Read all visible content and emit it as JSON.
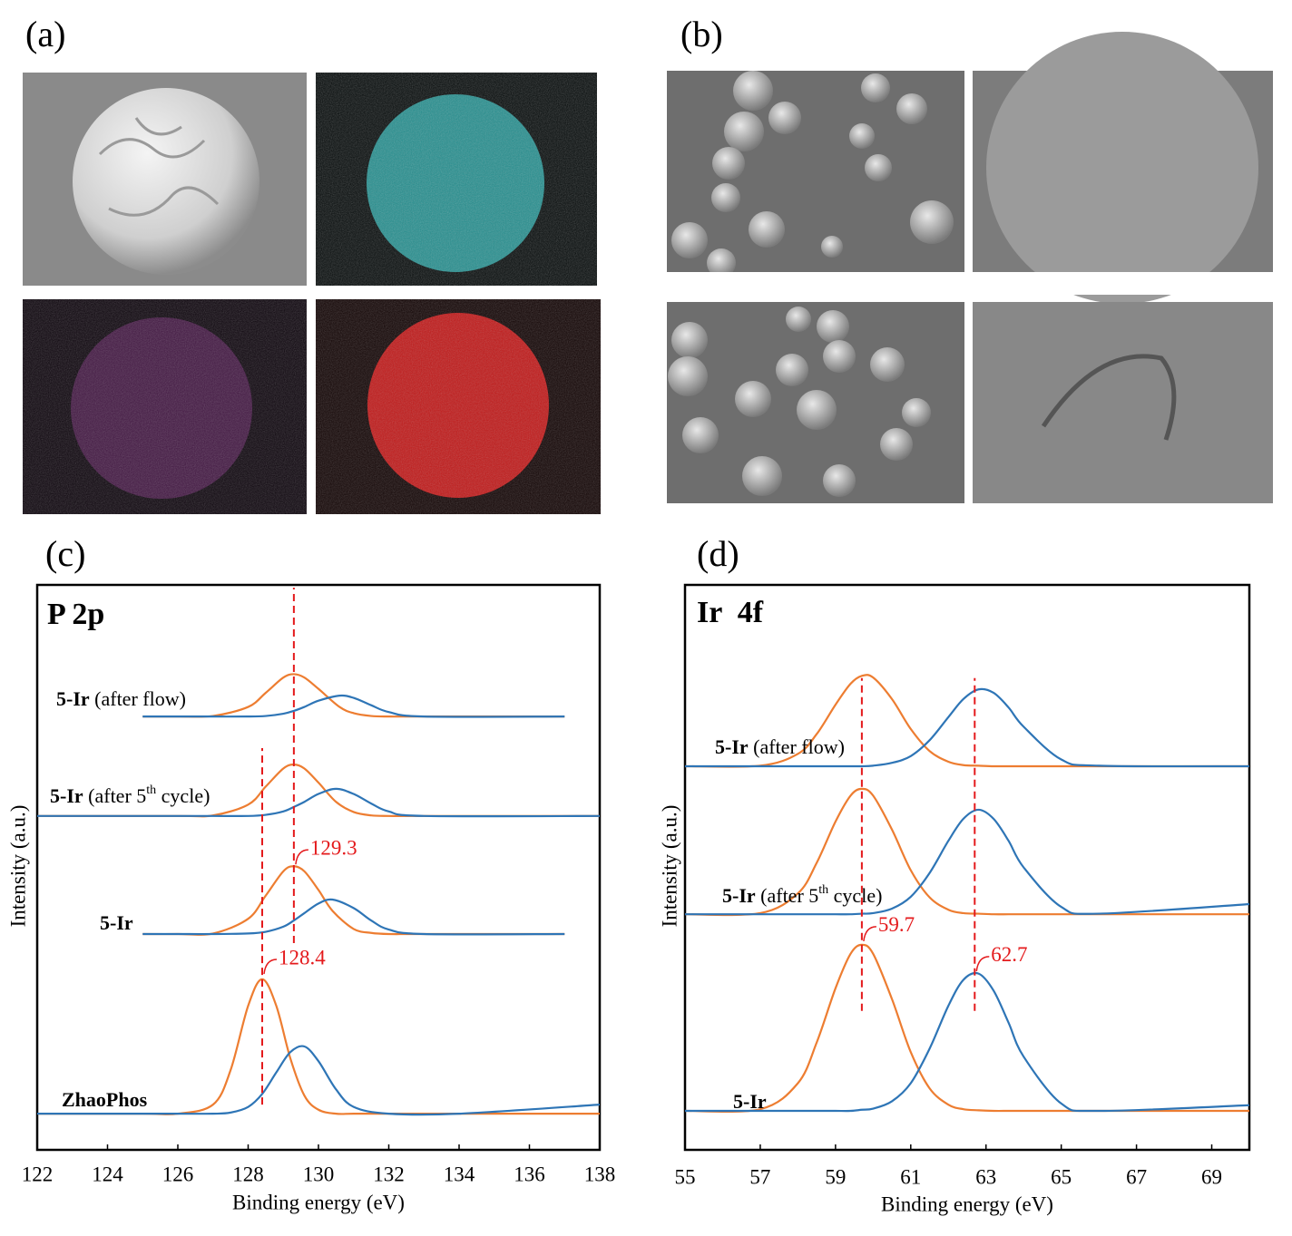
{
  "panels": [
    "(a)",
    "(b)"
  ],
  "chart_data": [
    {
      "type": "line",
      "panel": "(c)",
      "title": "P 2p",
      "x_label": "Binding energy (eV)",
      "y_label": "Intensity (a.u.)",
      "xlim": [
        122,
        138
      ],
      "xticks": [
        122,
        124,
        126,
        128,
        130,
        132,
        134,
        136,
        138
      ],
      "ylim": [
        0,
        10
      ],
      "spectra": [
        {
          "name": "5-Ir",
          "note": "(after flow)",
          "x": [
            125,
            126,
            127,
            128,
            128.5,
            129,
            129.3,
            129.6,
            130,
            130.6,
            131,
            131.5,
            132,
            133,
            137
          ],
          "components": [
            {
              "color": "#ed7d31",
              "values": [
                7.67,
                7.67,
                7.68,
                7.84,
                8.09,
                8.36,
                8.42,
                8.36,
                8.16,
                7.84,
                7.73,
                7.68,
                7.67,
                7.67,
                7.67
              ]
            },
            {
              "color": "#2e75b6",
              "values": [
                7.67,
                7.67,
                7.67,
                7.67,
                7.68,
                7.72,
                7.77,
                7.84,
                7.95,
                8.04,
                8.0,
                7.87,
                7.75,
                7.67,
                7.67
              ]
            }
          ]
        },
        {
          "name": "5-Ir",
          "note": "(after 5",
          "sup": "th",
          "note_end": " cycle)",
          "x": [
            122,
            126,
            127,
            128,
            128.5,
            129,
            129.3,
            129.6,
            130,
            130.5,
            131,
            131.5,
            132,
            133,
            138
          ],
          "components": [
            {
              "color": "#ed7d31",
              "values": [
                5.91,
                5.91,
                5.92,
                6.11,
                6.43,
                6.75,
                6.82,
                6.75,
                6.5,
                6.16,
                5.98,
                5.92,
                5.91,
                5.91,
                5.91
              ]
            },
            {
              "color": "#2e75b6",
              "values": [
                5.91,
                5.91,
                5.91,
                5.91,
                5.93,
                5.99,
                6.07,
                6.16,
                6.3,
                6.39,
                6.3,
                6.13,
                5.99,
                5.91,
                5.91
              ]
            }
          ]
        },
        {
          "name": "5-Ir",
          "x": [
            125,
            126,
            127,
            128,
            128.5,
            129,
            129.3,
            129.6,
            130,
            130.4,
            131,
            131.5,
            132,
            133,
            137
          ],
          "components": [
            {
              "color": "#ed7d31",
              "values": [
                3.82,
                3.82,
                3.83,
                4.09,
                4.5,
                4.93,
                5.02,
                4.93,
                4.6,
                4.23,
                3.91,
                3.84,
                3.82,
                3.82,
                3.82
              ]
            },
            {
              "color": "#2e75b6",
              "values": [
                3.82,
                3.82,
                3.82,
                3.83,
                3.86,
                3.95,
                4.06,
                4.19,
                4.36,
                4.43,
                4.28,
                4.06,
                3.9,
                3.82,
                3.82
              ]
            }
          ]
        },
        {
          "name": "ZhaoPhos",
          "x": [
            122,
            125,
            126,
            127,
            127.5,
            128,
            128.4,
            128.8,
            129.2,
            129.6,
            130,
            130.5,
            131,
            132,
            134,
            138
          ],
          "components": [
            {
              "color": "#ed7d31",
              "values": [
                0.64,
                0.64,
                0.64,
                0.8,
                1.41,
                2.55,
                3.02,
                2.55,
                1.62,
                0.96,
                0.71,
                0.64,
                0.64,
                0.64,
                0.64,
                0.64
              ]
            },
            {
              "color": "#2e75b6",
              "values": [
                0.64,
                0.64,
                0.64,
                0.64,
                0.66,
                0.76,
                0.99,
                1.37,
                1.73,
                1.83,
                1.57,
                1.07,
                0.76,
                0.64,
                0.64,
                0.8
              ]
            }
          ]
        }
      ],
      "annotations": [
        {
          "value": 129.3,
          "label_y": 5.31,
          "line_ylim": [
            3.66,
            9.95
          ]
        },
        {
          "value": 128.4,
          "label_y": 3.37,
          "line_ylim": [
            0.8,
            7.11
          ]
        }
      ]
    },
    {
      "type": "line",
      "panel": "(d)",
      "title": "Ir  4f",
      "x_label": "Binding energy (eV)",
      "y_label": "Intensity (a.u.)",
      "xlim": [
        55,
        70
      ],
      "xticks": [
        55,
        57,
        59,
        61,
        63,
        65,
        67,
        69
      ],
      "ylim": [
        0,
        10
      ],
      "spectra": [
        {
          "name": "5-Ir",
          "note": "(after flow)",
          "x": [
            55,
            57,
            58,
            58.5,
            59,
            59.4,
            59.7,
            60,
            60.5,
            61,
            61.5,
            62,
            62.4,
            62.8,
            63.2,
            63.6,
            64,
            65,
            66,
            70
          ],
          "components": [
            {
              "color": "#ed7d31",
              "values": [
                6.79,
                6.8,
                7.01,
                7.36,
                7.88,
                8.25,
                8.39,
                8.36,
                7.98,
                7.45,
                7.06,
                6.87,
                6.81,
                6.8,
                6.79,
                6.79,
                6.79,
                6.79,
                6.79,
                6.79
              ]
            },
            {
              "color": "#2e75b6",
              "values": [
                6.79,
                6.79,
                6.79,
                6.79,
                6.79,
                6.79,
                6.79,
                6.8,
                6.85,
                6.97,
                7.25,
                7.66,
                7.98,
                8.15,
                8.09,
                7.83,
                7.49,
                6.91,
                6.8,
                6.79
              ]
            }
          ]
        },
        {
          "name": "5-Ir",
          "note": "(after 5",
          "sup": "th",
          "note_end": " cycle)",
          "x": [
            55,
            57,
            58,
            58.5,
            59,
            59.4,
            59.7,
            60,
            60.5,
            61,
            61.5,
            62,
            62.4,
            62.8,
            63.2,
            63.6,
            64,
            65,
            66,
            70
          ],
          "components": [
            {
              "color": "#ed7d31",
              "values": [
                4.17,
                4.19,
                4.54,
                5.08,
                5.81,
                6.27,
                6.39,
                6.27,
                5.67,
                4.95,
                4.47,
                4.25,
                4.19,
                4.18,
                4.17,
                4.17,
                4.17,
                4.17,
                4.17,
                4.17
              ]
            },
            {
              "color": "#2e75b6",
              "values": [
                4.17,
                4.17,
                4.17,
                4.17,
                4.17,
                4.17,
                4.18,
                4.19,
                4.27,
                4.48,
                4.9,
                5.47,
                5.86,
                6.02,
                5.86,
                5.47,
                5.0,
                4.3,
                4.18,
                4.35
              ]
            }
          ]
        },
        {
          "name": "5-Ir",
          "x": [
            55,
            57,
            58,
            58.5,
            59,
            59.4,
            59.7,
            60,
            60.5,
            61,
            61.5,
            62,
            62.4,
            62.8,
            63.2,
            63.6,
            64,
            65,
            66,
            70
          ],
          "components": [
            {
              "color": "#ed7d31",
              "values": [
                0.69,
                0.72,
                1.18,
                1.9,
                2.86,
                3.47,
                3.63,
                3.47,
                2.67,
                1.73,
                1.09,
                0.8,
                0.72,
                0.7,
                0.69,
                0.69,
                0.69,
                0.69,
                0.69,
                0.69
              ]
            },
            {
              "color": "#2e75b6",
              "values": [
                0.69,
                0.69,
                0.69,
                0.69,
                0.69,
                0.69,
                0.71,
                0.73,
                0.86,
                1.18,
                1.79,
                2.55,
                3.01,
                3.12,
                2.82,
                2.25,
                1.65,
                0.82,
                0.69,
                0.79
              ]
            }
          ]
        }
      ],
      "annotations": [
        {
          "value": 59.7,
          "label_y": 3.95,
          "line_ylim": [
            2.46,
            8.35
          ]
        },
        {
          "value": 62.7,
          "label_y": 3.42,
          "line_ylim": [
            2.46,
            8.35
          ]
        }
      ]
    }
  ]
}
